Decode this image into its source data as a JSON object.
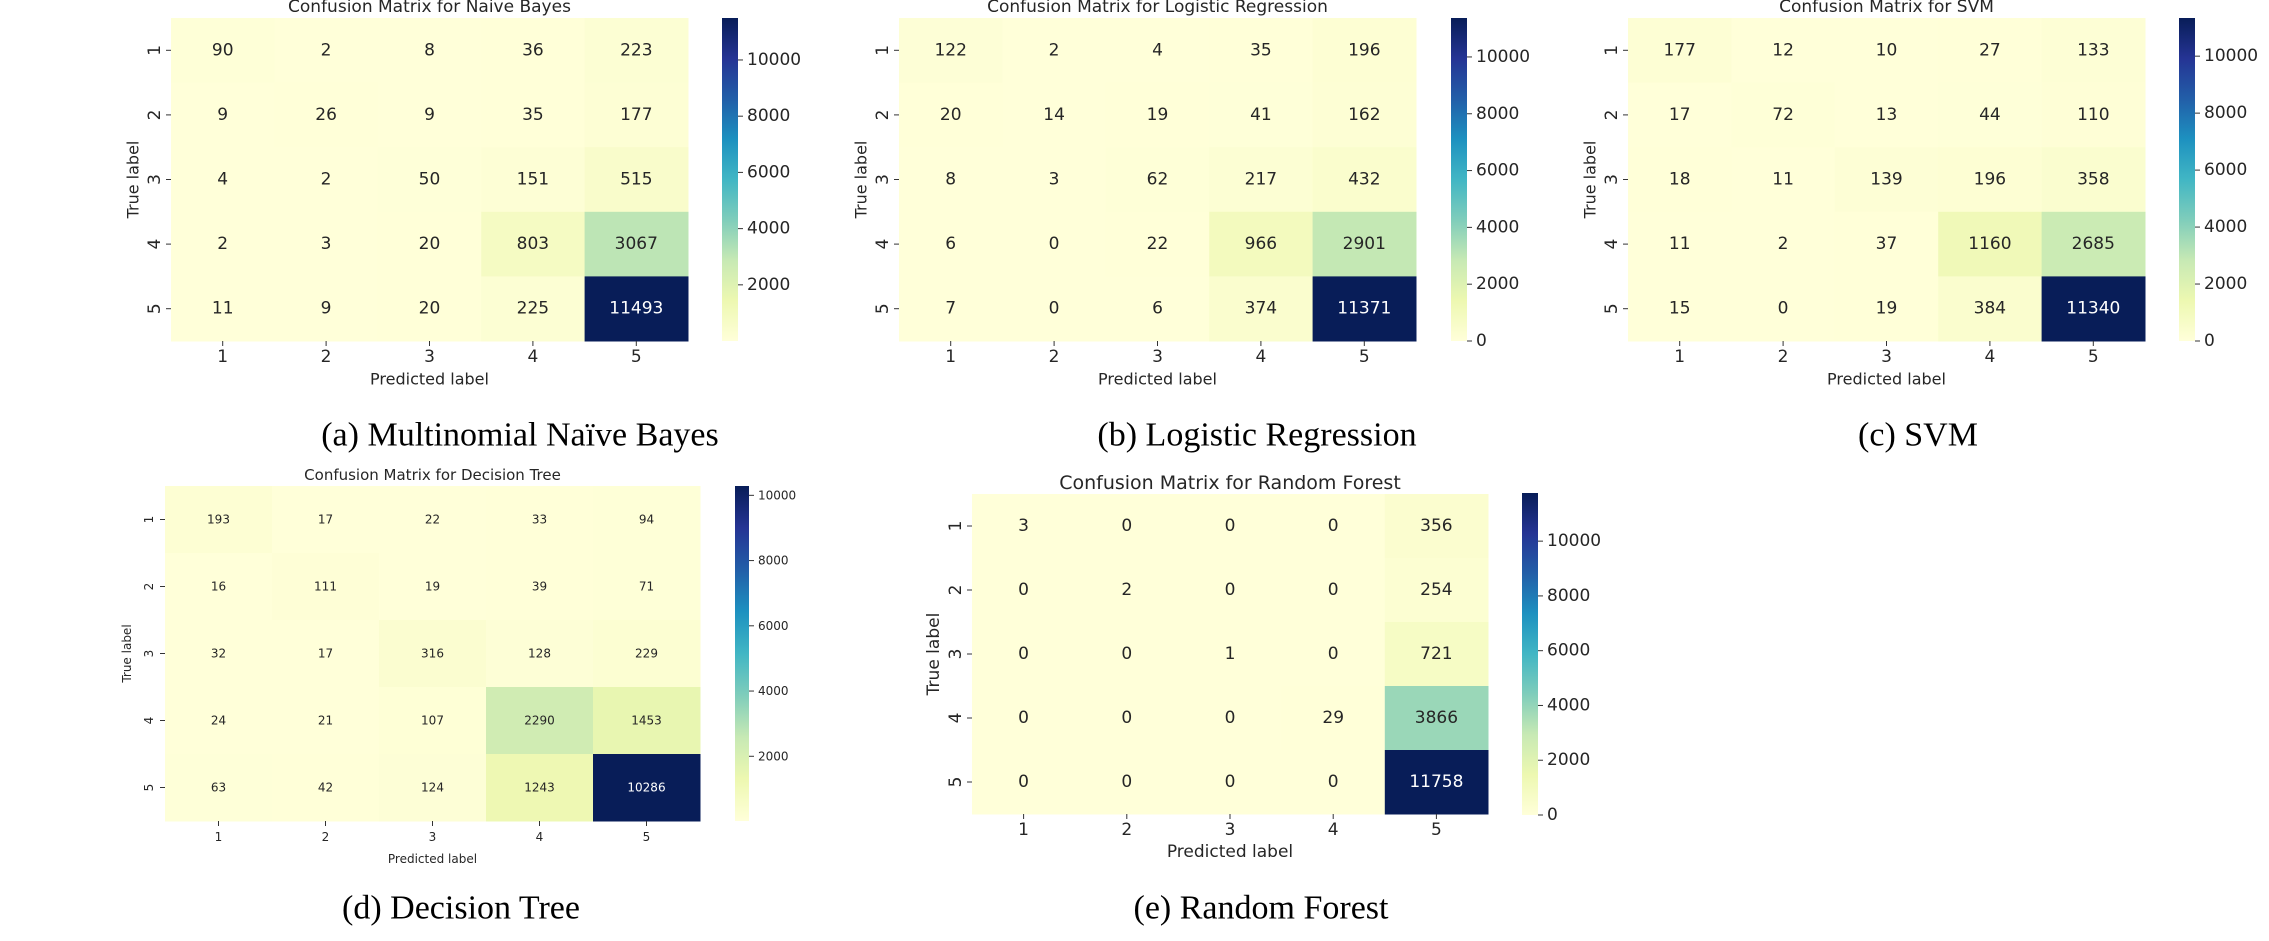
{
  "colorscale": {
    "name": "YlGnBu",
    "stops": [
      "#ffffd9",
      "#edf8b1",
      "#c7e9b4",
      "#7fcdbb",
      "#41b6c4",
      "#1d91c0",
      "#225ea8",
      "#253494",
      "#081d58"
    ]
  },
  "chart_data": [
    {
      "type": "heatmap",
      "title": "Confusion Matrix for Naive Bayes",
      "caption": "(a) Multinomial Naïve Bayes",
      "xlabel": "Predicted label",
      "ylabel": "True label",
      "x_categories": [
        "1",
        "2",
        "3",
        "4",
        "5"
      ],
      "y_categories": [
        "1",
        "2",
        "3",
        "4",
        "5"
      ],
      "values": [
        [
          90,
          2,
          8,
          36,
          223
        ],
        [
          9,
          26,
          9,
          35,
          177
        ],
        [
          4,
          2,
          50,
          151,
          515
        ],
        [
          2,
          3,
          20,
          803,
          3067
        ],
        [
          11,
          9,
          20,
          225,
          11493
        ]
      ],
      "colorbar_range": [
        2,
        11493
      ],
      "colorbar_ticks": [
        "2000",
        "4000",
        "6000",
        "8000",
        "10000"
      ]
    },
    {
      "type": "heatmap",
      "title": "Confusion Matrix for Logistic Regression",
      "caption": "(b) Logistic Regression",
      "xlabel": "Predicted label",
      "ylabel": "True label",
      "x_categories": [
        "1",
        "2",
        "3",
        "4",
        "5"
      ],
      "y_categories": [
        "1",
        "2",
        "3",
        "4",
        "5"
      ],
      "values": [
        [
          122,
          2,
          4,
          35,
          196
        ],
        [
          20,
          14,
          19,
          41,
          162
        ],
        [
          8,
          3,
          62,
          217,
          432
        ],
        [
          6,
          0,
          22,
          966,
          2901
        ],
        [
          7,
          0,
          6,
          374,
          11371
        ]
      ],
      "colorbar_range": [
        0,
        11371
      ],
      "colorbar_ticks": [
        "0",
        "2000",
        "4000",
        "6000",
        "8000",
        "10000"
      ]
    },
    {
      "type": "heatmap",
      "title": "Confusion Matrix for SVM",
      "caption": "(c) SVM",
      "xlabel": "Predicted label",
      "ylabel": "True label",
      "x_categories": [
        "1",
        "2",
        "3",
        "4",
        "5"
      ],
      "y_categories": [
        "1",
        "2",
        "3",
        "4",
        "5"
      ],
      "values": [
        [
          177,
          12,
          10,
          27,
          133
        ],
        [
          17,
          72,
          13,
          44,
          110
        ],
        [
          18,
          11,
          139,
          196,
          358
        ],
        [
          11,
          2,
          37,
          1160,
          2685
        ],
        [
          15,
          0,
          19,
          384,
          11340
        ]
      ],
      "colorbar_range": [
        0,
        11340
      ],
      "colorbar_ticks": [
        "0",
        "2000",
        "4000",
        "6000",
        "8000",
        "10000"
      ]
    },
    {
      "type": "heatmap",
      "title": "Confusion Matrix for Decision Tree",
      "caption": "(d) Decision Tree",
      "xlabel": "Predicted label",
      "ylabel": "True label",
      "x_categories": [
        "1",
        "2",
        "3",
        "4",
        "5"
      ],
      "y_categories": [
        "1",
        "2",
        "3",
        "4",
        "5"
      ],
      "values": [
        [
          193,
          17,
          22,
          33,
          94
        ],
        [
          16,
          111,
          19,
          39,
          71
        ],
        [
          32,
          17,
          316,
          128,
          229
        ],
        [
          24,
          21,
          107,
          2290,
          1453
        ],
        [
          63,
          42,
          124,
          1243,
          10286
        ]
      ],
      "colorbar_range": [
        16,
        10286
      ],
      "colorbar_ticks": [
        "2000",
        "4000",
        "6000",
        "8000",
        "10000"
      ]
    },
    {
      "type": "heatmap",
      "title": "Confusion Matrix for Random Forest",
      "caption": "(e) Random Forest",
      "xlabel": "Predicted label",
      "ylabel": "True label",
      "x_categories": [
        "1",
        "2",
        "3",
        "4",
        "5"
      ],
      "y_categories": [
        "1",
        "2",
        "3",
        "4",
        "5"
      ],
      "values": [
        [
          3,
          0,
          0,
          0,
          356
        ],
        [
          0,
          2,
          0,
          0,
          254
        ],
        [
          0,
          0,
          1,
          0,
          721
        ],
        [
          0,
          0,
          0,
          29,
          3866
        ],
        [
          0,
          0,
          0,
          0,
          11758
        ]
      ],
      "colorbar_range": [
        0,
        11758
      ],
      "colorbar_ticks": [
        "0",
        "2000",
        "4000",
        "6000",
        "8000",
        "10000"
      ]
    }
  ]
}
